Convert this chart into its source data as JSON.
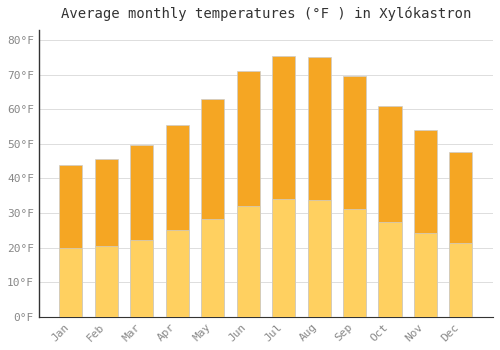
{
  "title": "Average monthly temperatures (°F ) in Xylókastron",
  "months": [
    "Jan",
    "Feb",
    "Mar",
    "Apr",
    "May",
    "Jun",
    "Jul",
    "Aug",
    "Sep",
    "Oct",
    "Nov",
    "Dec"
  ],
  "values": [
    44,
    45.5,
    49.5,
    55.5,
    63,
    71,
    75.5,
    75,
    69.5,
    61,
    54,
    47.5
  ],
  "bar_color_top": "#F5A623",
  "bar_color_bottom": "#FFD060",
  "bar_edge_color": "#CCCCCC",
  "background_color": "#FFFFFF",
  "grid_color": "#DDDDDD",
  "yticks": [
    0,
    10,
    20,
    30,
    40,
    50,
    60,
    70,
    80
  ],
  "ytick_labels": [
    "0°F",
    "10°F",
    "20°F",
    "30°F",
    "40°F",
    "50°F",
    "60°F",
    "70°F",
    "80°F"
  ],
  "ylim": [
    0,
    83
  ],
  "title_fontsize": 10,
  "tick_fontsize": 8,
  "tick_color": "#888888",
  "spine_color": "#333333"
}
